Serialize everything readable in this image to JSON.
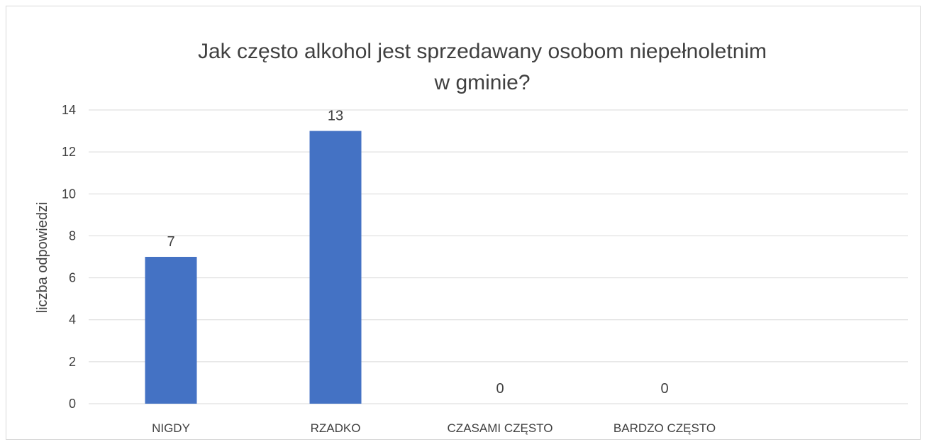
{
  "chart_data": {
    "type": "bar",
    "title_lines": [
      "Jak często alkohol jest sprzedawany osobom niepełnoletnim",
      "w gminie?"
    ],
    "ylabel": "liczba odpowiedzi",
    "categories": [
      "NIGDY",
      "RZADKO",
      "CZASAMI CZĘSTO",
      "BARDZO CZĘSTO"
    ],
    "values": [
      7,
      13,
      0,
      0
    ],
    "data_labels": [
      "7",
      "13",
      "0",
      "0"
    ],
    "yticks": [
      "0",
      "2",
      "4",
      "6",
      "8",
      "10",
      "12",
      "14"
    ],
    "ylim": [
      0,
      14
    ],
    "grid": true,
    "legend": "none",
    "bar_color": "#4472c4",
    "grid_color": "#d9d9d9"
  }
}
